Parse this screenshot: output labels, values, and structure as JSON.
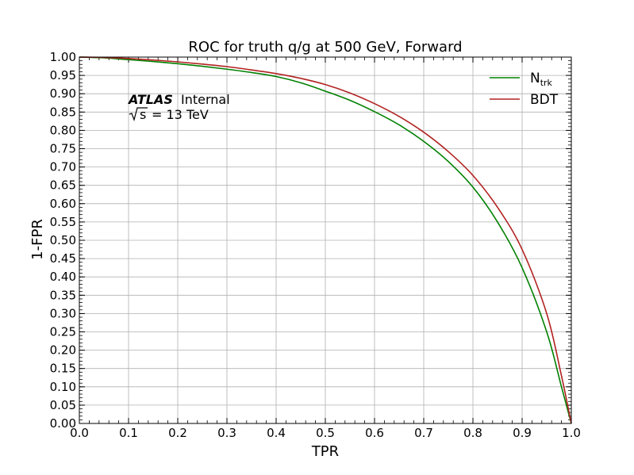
{
  "chart_data": {
    "type": "line",
    "title": "ROC for truth q/g at 500 GeV, Forward",
    "xlabel": "TPR",
    "ylabel": "1-FPR",
    "xlim": [
      0.0,
      1.0
    ],
    "ylim": [
      0.0,
      1.0
    ],
    "grid": true,
    "legend_position": "top-right",
    "x_ticks": [
      "0.0",
      "0.1",
      "0.2",
      "0.3",
      "0.4",
      "0.5",
      "0.6",
      "0.7",
      "0.8",
      "0.9",
      "1.0"
    ],
    "y_ticks": [
      "0.00",
      "0.05",
      "0.10",
      "0.15",
      "0.20",
      "0.25",
      "0.30",
      "0.35",
      "0.40",
      "0.45",
      "0.50",
      "0.55",
      "0.60",
      "0.65",
      "0.70",
      "0.75",
      "0.80",
      "0.85",
      "0.90",
      "0.95",
      "1.00"
    ],
    "series": [
      {
        "name": "N",
        "name_sub": "trk",
        "color": "#008000",
        "x": [
          0.0,
          0.05,
          0.1,
          0.15,
          0.2,
          0.25,
          0.3,
          0.35,
          0.4,
          0.45,
          0.5,
          0.55,
          0.6,
          0.65,
          0.7,
          0.75,
          0.8,
          0.85,
          0.9,
          0.95,
          0.98,
          1.0
        ],
        "y": [
          1.0,
          0.998,
          0.993,
          0.988,
          0.982,
          0.975,
          0.967,
          0.958,
          0.947,
          0.93,
          0.907,
          0.882,
          0.851,
          0.815,
          0.77,
          0.715,
          0.645,
          0.55,
          0.425,
          0.25,
          0.1,
          0.0
        ]
      },
      {
        "name": "BDT",
        "name_sub": "",
        "color": "#b22222",
        "x": [
          0.0,
          0.05,
          0.1,
          0.15,
          0.2,
          0.25,
          0.3,
          0.35,
          0.4,
          0.45,
          0.5,
          0.55,
          0.6,
          0.65,
          0.7,
          0.75,
          0.8,
          0.85,
          0.9,
          0.95,
          0.98,
          1.0
        ],
        "y": [
          1.0,
          0.999,
          0.996,
          0.992,
          0.987,
          0.981,
          0.974,
          0.965,
          0.955,
          0.942,
          0.925,
          0.902,
          0.873,
          0.838,
          0.795,
          0.742,
          0.677,
          0.59,
          0.475,
          0.3,
          0.13,
          0.0
        ]
      }
    ],
    "annotations": {
      "atlas_label": "ATLAS",
      "status_label": "Internal",
      "energy_sqrt": "s",
      "energy_rest": "= 13 TeV"
    }
  }
}
